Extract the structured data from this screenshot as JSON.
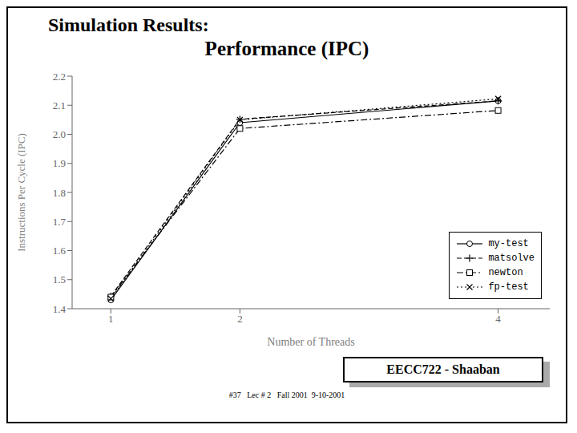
{
  "chart_data": {
    "type": "line",
    "title": "Simulation Results:",
    "subtitle": "Performance (IPC)",
    "x_label": "Number of Threads",
    "y_label": "Instructions Per Cycle (IPC)",
    "x": [
      1,
      2,
      4
    ],
    "series": [
      {
        "name": "my-test",
        "color": "#000000",
        "marker": "circle",
        "line_style": "solid",
        "values": [
          1.43,
          2.04,
          2.115
        ]
      },
      {
        "name": "matsolve",
        "color": "#000000",
        "marker": "plus",
        "line_style": "dashed",
        "values": [
          1.443,
          2.052,
          2.115
        ]
      },
      {
        "name": "newton",
        "color": "#000000",
        "marker": "square",
        "line_style": "dashdot",
        "values": [
          1.44,
          2.02,
          2.082
        ]
      },
      {
        "name": "fp-test",
        "color": "#000000",
        "marker": "x",
        "line_style": "dotted",
        "values": [
          1.435,
          2.05,
          2.122
        ]
      }
    ],
    "xlim": [
      0.7,
      4.4
    ],
    "xticks": [
      1,
      2,
      4
    ],
    "ylim": [
      1.4,
      2.2
    ],
    "yticks": [
      1.4,
      1.5,
      1.6,
      1.7,
      1.8,
      1.9,
      {
        "value": 2.0,
        "label": "2.0"
      },
      2.1,
      2.2
    ],
    "grid": false,
    "legend": "lower right",
    "annotations": [
      "EECC722 - Shaaban",
      "#37   Lec # 2   Fall 2001  9-10-2001"
    ]
  }
}
